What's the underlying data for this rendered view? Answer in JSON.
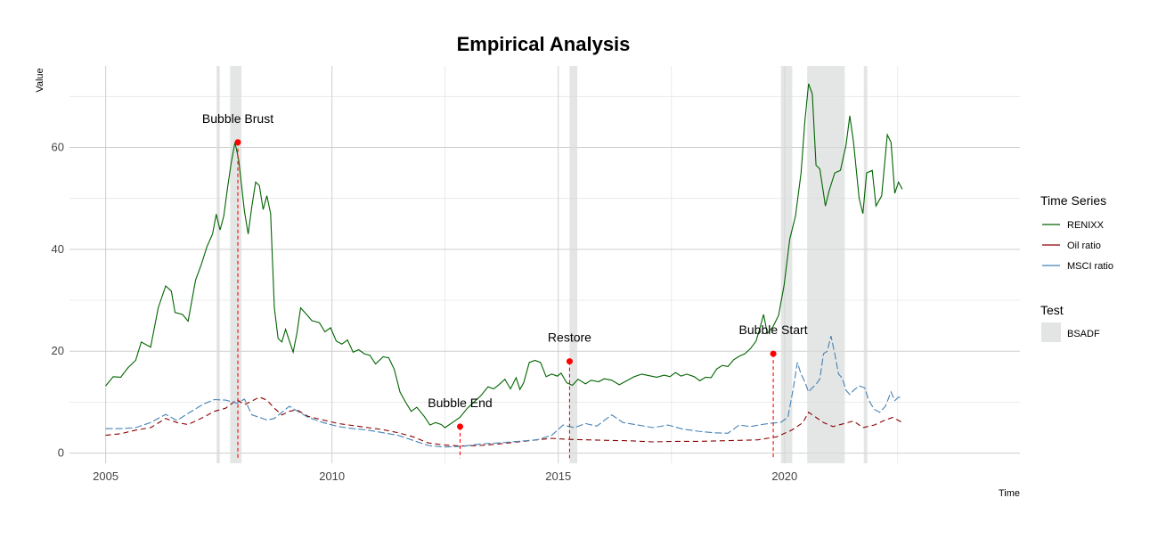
{
  "chart_data": {
    "type": "line",
    "title": "Empirical Analysis",
    "xlabel": "Time",
    "ylabel": "Value",
    "xlim": [
      2004.2,
      2025.2
    ],
    "ylim": [
      -2,
      76
    ],
    "x_ticks": [
      2005,
      2010,
      2015,
      2020
    ],
    "y_ticks": [
      0,
      20,
      40,
      60
    ],
    "grid": true,
    "legend_position": "right",
    "legend": {
      "series_title": "Time Series",
      "test_title": "Test",
      "test_label": "BSADF"
    },
    "shaded_periods": [
      [
        2007.45,
        2007.52
      ],
      [
        2007.75,
        2008.0
      ],
      [
        2015.25,
        2015.42
      ],
      [
        2019.92,
        2020.17
      ],
      [
        2020.5,
        2021.33
      ],
      [
        2021.75,
        2021.83
      ]
    ],
    "series": [
      {
        "name": "RENIXX",
        "color": "#006400",
        "dash": "solid",
        "points": [
          [
            2005.0,
            13.2
          ],
          [
            2005.2,
            15.0
          ],
          [
            2005.4,
            14.9
          ],
          [
            2005.6,
            16.8
          ],
          [
            2005.8,
            18.2
          ],
          [
            2005.95,
            21.8
          ],
          [
            2006.2,
            20.8
          ],
          [
            2006.4,
            28.5
          ],
          [
            2006.6,
            32.8
          ],
          [
            2006.75,
            31.8
          ],
          [
            2006.85,
            27.6
          ],
          [
            2007.05,
            27.2
          ],
          [
            2007.2,
            25.9
          ],
          [
            2007.4,
            34.0
          ],
          [
            2007.55,
            37.0
          ],
          [
            2007.7,
            40.5
          ],
          [
            2007.85,
            43.0
          ],
          [
            2007.95,
            46.9
          ],
          [
            2008.05,
            43.8
          ],
          [
            2008.15,
            46.5
          ],
          [
            2008.25,
            52.0
          ],
          [
            2008.35,
            57.0
          ],
          [
            2008.45,
            61.0
          ],
          [
            2008.55,
            57.5
          ],
          [
            2008.7,
            47.5
          ],
          [
            2008.8,
            43.0
          ],
          [
            2008.9,
            48.5
          ],
          [
            2009.0,
            53.2
          ],
          [
            2009.1,
            52.5
          ],
          [
            2009.2,
            47.8
          ],
          [
            2009.3,
            50.5
          ],
          [
            2009.4,
            47.0
          ],
          [
            2009.5,
            28.5
          ],
          [
            2009.6,
            22.5
          ],
          [
            2009.7,
            21.8
          ],
          [
            2009.8,
            24.3
          ],
          [
            2009.9,
            22.0
          ],
          [
            2010.0,
            19.8
          ],
          [
            2010.1,
            23.5
          ],
          [
            2010.2,
            28.5
          ],
          [
            2010.35,
            27.3
          ],
          [
            2010.5,
            26.0
          ],
          [
            2010.7,
            25.6
          ],
          [
            2010.85,
            23.8
          ],
          [
            2011.0,
            24.6
          ],
          [
            2011.15,
            22.0
          ],
          [
            2011.3,
            21.4
          ],
          [
            2011.45,
            22.2
          ],
          [
            2011.6,
            19.8
          ],
          [
            2011.75,
            20.3
          ],
          [
            2011.9,
            19.5
          ],
          [
            2012.05,
            19.2
          ],
          [
            2012.2,
            17.5
          ],
          [
            2012.4,
            18.9
          ],
          [
            2012.55,
            18.7
          ],
          [
            2012.7,
            16.4
          ],
          [
            2012.85,
            12.0
          ],
          [
            2013.0,
            10.0
          ],
          [
            2013.15,
            8.2
          ],
          [
            2013.3,
            9.0
          ],
          [
            2013.5,
            7.2
          ],
          [
            2013.65,
            5.5
          ],
          [
            2013.8,
            6.0
          ],
          [
            2013.95,
            5.6
          ],
          [
            2014.05,
            5.0
          ],
          [
            2014.25,
            6.0
          ],
          [
            2014.45,
            7.0
          ],
          [
            2014.65,
            8.8
          ],
          [
            2014.85,
            10.2
          ],
          [
            2015.0,
            11.2
          ],
          [
            2015.2,
            13.0
          ],
          [
            2015.35,
            12.6
          ],
          [
            2015.5,
            13.5
          ],
          [
            2015.65,
            14.5
          ],
          [
            2015.8,
            12.6
          ],
          [
            2015.95,
            14.8
          ],
          [
            2016.05,
            12.5
          ],
          [
            2016.15,
            13.8
          ],
          [
            2016.3,
            17.8
          ],
          [
            2016.45,
            18.2
          ],
          [
            2016.6,
            17.8
          ],
          [
            2016.75,
            15.0
          ],
          [
            2016.9,
            15.5
          ],
          [
            2017.05,
            15.1
          ],
          [
            2017.15,
            15.7
          ],
          [
            2017.3,
            13.8
          ],
          [
            2017.45,
            13.3
          ],
          [
            2017.6,
            14.5
          ],
          [
            2017.8,
            13.6
          ],
          [
            2017.95,
            14.3
          ],
          [
            2018.15,
            14.0
          ],
          [
            2018.3,
            14.6
          ],
          [
            2018.5,
            14.3
          ],
          [
            2018.7,
            13.4
          ],
          [
            2018.9,
            14.2
          ],
          [
            2019.1,
            15.0
          ],
          [
            2019.3,
            15.5
          ],
          [
            2019.5,
            15.2
          ],
          [
            2019.7,
            14.9
          ],
          [
            2019.9,
            15.3
          ],
          [
            2020.05,
            15.0
          ],
          [
            2020.2,
            15.8
          ],
          [
            2020.35,
            15.1
          ],
          [
            2020.5,
            15.5
          ],
          [
            2020.7,
            15.0
          ],
          [
            2020.85,
            14.2
          ],
          [
            2021.0,
            14.9
          ],
          [
            2021.15,
            14.8
          ],
          [
            2021.3,
            16.5
          ],
          [
            2021.45,
            17.2
          ],
          [
            2021.6,
            17.0
          ],
          [
            2021.75,
            18.3
          ],
          [
            2021.9,
            19.0
          ],
          [
            2022.05,
            19.5
          ],
          [
            2022.2,
            20.5
          ],
          [
            2022.35,
            22.0
          ],
          [
            2022.45,
            24.5
          ],
          [
            2022.55,
            27.2
          ],
          [
            2022.65,
            23.5
          ],
          [
            2022.8,
            24.8
          ],
          [
            2022.95,
            27.0
          ],
          [
            2023.1,
            33.0
          ],
          [
            2023.25,
            42.0
          ],
          [
            2023.4,
            46.5
          ],
          [
            2023.55,
            55.0
          ],
          [
            2023.65,
            65.0
          ],
          [
            2023.75,
            72.5
          ],
          [
            2023.85,
            70.5
          ],
          [
            2023.95,
            56.5
          ],
          [
            2024.05,
            55.8
          ],
          [
            2024.15,
            51.0
          ],
          [
            2024.2,
            48.5
          ],
          [
            2024.3,
            51.5
          ],
          [
            2024.45,
            55.0
          ],
          [
            2024.6,
            55.5
          ],
          [
            2024.75,
            60.5
          ],
          [
            2024.85,
            66.2
          ],
          [
            2024.95,
            61.0
          ],
          [
            2025.1,
            50.0
          ],
          [
            2025.2,
            47.0
          ],
          [
            2025.3,
            55.0
          ],
          [
            2025.45,
            55.5
          ],
          [
            2025.55,
            48.5
          ],
          [
            2025.7,
            50.5
          ],
          [
            2025.85,
            62.5
          ],
          [
            2025.95,
            61.0
          ],
          [
            2026.05,
            51.0
          ],
          [
            2026.15,
            53.2
          ],
          [
            2026.25,
            51.8
          ]
        ]
      },
      {
        "name": "Oil ratio",
        "color": "#8b0000",
        "dash": "6,4",
        "points": [
          [
            2005.0,
            3.5
          ],
          [
            2005.4,
            3.8
          ],
          [
            2005.8,
            4.5
          ],
          [
            2006.2,
            5.0
          ],
          [
            2006.6,
            6.8
          ],
          [
            2006.9,
            6.0
          ],
          [
            2007.2,
            5.6
          ],
          [
            2007.6,
            7.0
          ],
          [
            2007.9,
            8.2
          ],
          [
            2008.2,
            8.8
          ],
          [
            2008.5,
            10.5
          ],
          [
            2008.7,
            9.5
          ],
          [
            2008.9,
            10.2
          ],
          [
            2009.1,
            11.0
          ],
          [
            2009.3,
            10.4
          ],
          [
            2009.5,
            8.8
          ],
          [
            2009.7,
            7.5
          ],
          [
            2009.9,
            8.2
          ],
          [
            2010.1,
            8.5
          ],
          [
            2010.4,
            7.2
          ],
          [
            2010.8,
            6.5
          ],
          [
            2011.2,
            5.8
          ],
          [
            2011.6,
            5.4
          ],
          [
            2012.0,
            5.0
          ],
          [
            2012.4,
            4.6
          ],
          [
            2012.8,
            4.0
          ],
          [
            2013.2,
            3.2
          ],
          [
            2013.6,
            2.0
          ],
          [
            2014.0,
            1.6
          ],
          [
            2014.5,
            1.4
          ],
          [
            2015.0,
            1.5
          ],
          [
            2015.5,
            1.8
          ],
          [
            2016.0,
            2.2
          ],
          [
            2016.5,
            2.6
          ],
          [
            2016.9,
            2.9
          ],
          [
            2017.3,
            2.7
          ],
          [
            2017.8,
            2.6
          ],
          [
            2018.4,
            2.5
          ],
          [
            2019.0,
            2.4
          ],
          [
            2019.6,
            2.2
          ],
          [
            2020.2,
            2.3
          ],
          [
            2020.8,
            2.3
          ],
          [
            2021.4,
            2.4
          ],
          [
            2021.9,
            2.5
          ],
          [
            2022.4,
            2.6
          ],
          [
            2022.9,
            3.2
          ],
          [
            2023.3,
            4.5
          ],
          [
            2023.6,
            6.0
          ],
          [
            2023.75,
            8.0
          ],
          [
            2023.95,
            7.0
          ],
          [
            2024.15,
            6.0
          ],
          [
            2024.4,
            5.2
          ],
          [
            2024.7,
            5.8
          ],
          [
            2024.95,
            6.3
          ],
          [
            2025.2,
            5.0
          ],
          [
            2025.5,
            5.5
          ],
          [
            2025.8,
            6.5
          ],
          [
            2026.0,
            7.0
          ],
          [
            2026.25,
            6.0
          ]
        ]
      },
      {
        "name": "MSCI ratio",
        "color": "#4682b4",
        "dash": "8,3",
        "points": [
          [
            2005.0,
            4.8
          ],
          [
            2005.4,
            4.8
          ],
          [
            2005.8,
            5.0
          ],
          [
            2006.2,
            6.0
          ],
          [
            2006.6,
            7.6
          ],
          [
            2006.9,
            6.4
          ],
          [
            2007.2,
            7.8
          ],
          [
            2007.6,
            9.6
          ],
          [
            2007.9,
            10.5
          ],
          [
            2008.2,
            10.4
          ],
          [
            2008.5,
            9.8
          ],
          [
            2008.7,
            10.6
          ],
          [
            2008.9,
            7.5
          ],
          [
            2009.1,
            7.0
          ],
          [
            2009.3,
            6.5
          ],
          [
            2009.5,
            6.8
          ],
          [
            2009.7,
            8.0
          ],
          [
            2009.9,
            9.2
          ],
          [
            2010.1,
            8.3
          ],
          [
            2010.4,
            7.0
          ],
          [
            2010.8,
            6.0
          ],
          [
            2011.2,
            5.2
          ],
          [
            2011.6,
            4.8
          ],
          [
            2012.0,
            4.5
          ],
          [
            2012.4,
            4.0
          ],
          [
            2012.8,
            3.5
          ],
          [
            2013.2,
            2.5
          ],
          [
            2013.6,
            1.5
          ],
          [
            2014.0,
            1.2
          ],
          [
            2014.5,
            1.3
          ],
          [
            2015.0,
            1.8
          ],
          [
            2015.5,
            2.0
          ],
          [
            2016.0,
            2.3
          ],
          [
            2016.5,
            2.6
          ],
          [
            2016.9,
            3.5
          ],
          [
            2017.2,
            5.5
          ],
          [
            2017.5,
            5.0
          ],
          [
            2017.8,
            5.8
          ],
          [
            2018.1,
            5.3
          ],
          [
            2018.5,
            7.5
          ],
          [
            2018.8,
            6.0
          ],
          [
            2019.2,
            5.5
          ],
          [
            2019.6,
            5.0
          ],
          [
            2020.0,
            5.5
          ],
          [
            2020.4,
            4.7
          ],
          [
            2020.8,
            4.3
          ],
          [
            2021.2,
            4.0
          ],
          [
            2021.6,
            3.9
          ],
          [
            2021.9,
            5.5
          ],
          [
            2022.2,
            5.2
          ],
          [
            2022.5,
            5.6
          ],
          [
            2022.8,
            5.9
          ],
          [
            2023.0,
            6.0
          ],
          [
            2023.2,
            7.0
          ],
          [
            2023.35,
            13.0
          ],
          [
            2023.45,
            17.8
          ],
          [
            2023.55,
            15.5
          ],
          [
            2023.65,
            14.0
          ],
          [
            2023.75,
            12.0
          ],
          [
            2023.85,
            12.8
          ],
          [
            2023.95,
            13.5
          ],
          [
            2024.05,
            14.5
          ],
          [
            2024.15,
            19.5
          ],
          [
            2024.25,
            20.0
          ],
          [
            2024.35,
            23.0
          ],
          [
            2024.45,
            19.5
          ],
          [
            2024.55,
            15.5
          ],
          [
            2024.65,
            14.7
          ],
          [
            2024.75,
            12.3
          ],
          [
            2024.85,
            11.5
          ],
          [
            2024.95,
            12.3
          ],
          [
            2025.1,
            13.2
          ],
          [
            2025.25,
            12.8
          ],
          [
            2025.35,
            10.5
          ],
          [
            2025.5,
            8.6
          ],
          [
            2025.65,
            8.0
          ],
          [
            2025.8,
            9.2
          ],
          [
            2025.95,
            12.0
          ],
          [
            2026.05,
            10.3
          ],
          [
            2026.15,
            11.0
          ],
          [
            2026.25,
            10.8
          ]
        ]
      }
    ],
    "annotations": [
      {
        "label": "Bubble Brust",
        "x": 2007.92,
        "y": 61.0
      },
      {
        "label": "Bubble End",
        "x": 2012.83,
        "y": 5.2
      },
      {
        "label": "Restore",
        "x": 2015.25,
        "y": 18.0
      },
      {
        "label": "Bubble Start",
        "x": 2019.75,
        "y": 19.5
      }
    ]
  }
}
